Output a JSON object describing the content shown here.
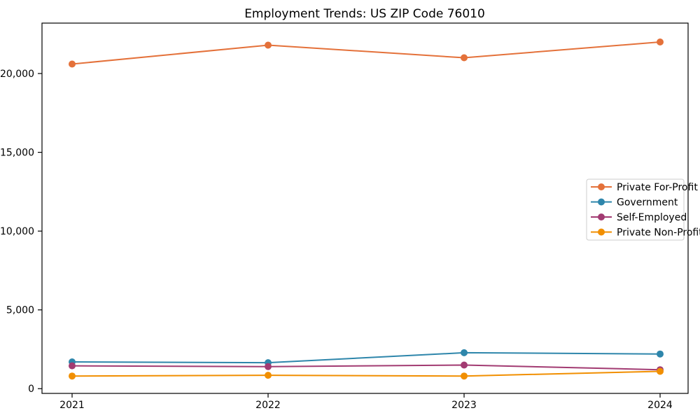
{
  "chart_data": {
    "type": "line",
    "title": "Employment Trends: US ZIP Code 76010",
    "xlabel": "",
    "ylabel": "",
    "x_tick_labels": [
      "2021",
      "2022",
      "2023",
      "2024"
    ],
    "y_ticks": [
      0,
      5000,
      10000,
      15000,
      20000
    ],
    "y_tick_labels": [
      "0",
      "5,000",
      "10,000",
      "15,000",
      "20,000"
    ],
    "ylim": [
      -300,
      23200
    ],
    "grid": false,
    "legend_position": "center-right",
    "background_color": "#ffffff",
    "axis_color": "#000000",
    "legend_border_color": "#cccccc",
    "categories": [
      "2021",
      "2022",
      "2023",
      "2024"
    ],
    "series": [
      {
        "name": "Private For-Profit",
        "color": "#E4713A",
        "values": [
          20600,
          21800,
          21000,
          22000
        ]
      },
      {
        "name": "Government",
        "color": "#2E86AB",
        "values": [
          1700,
          1650,
          2280,
          2200
        ]
      },
      {
        "name": "Self-Employed",
        "color": "#A23B72",
        "values": [
          1450,
          1400,
          1500,
          1200
        ]
      },
      {
        "name": "Private Non-Profit",
        "color": "#F18F01",
        "values": [
          800,
          850,
          800,
          1100
        ]
      }
    ]
  }
}
